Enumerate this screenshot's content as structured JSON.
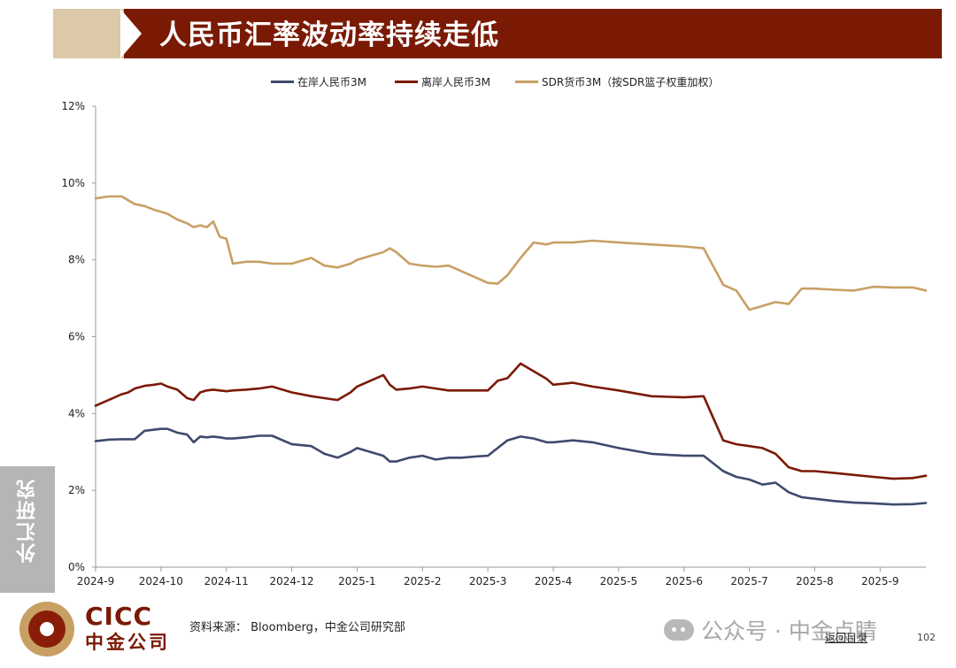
{
  "header": {
    "title": "人民币汇率波动率持续走低"
  },
  "side_tab": {
    "label": "外汇研究"
  },
  "footer": {
    "logo_en": "CICC",
    "logo_cn": "中金公司",
    "source": "资料来源： Bloomberg，中金公司研究部",
    "watermark": "公众号 · 中金点睛",
    "back_link": "返回目录",
    "page_number": "102"
  },
  "colors": {
    "banner": "#7a1a05",
    "banner_accent": "#dcc9a8",
    "onshore": "#3e4a6e",
    "offshore": "#7a1a05",
    "sdr": "#c8a064"
  },
  "chart_data": {
    "type": "line",
    "title": "",
    "xlabel": "",
    "ylabel": "",
    "ylim": [
      0,
      12
    ],
    "y_ticks": [
      "0%",
      "2%",
      "4%",
      "6%",
      "8%",
      "10%",
      "12%"
    ],
    "x_ticks": [
      "2024-9",
      "2024-10",
      "2024-11",
      "2024-12",
      "2025-1",
      "2025-2",
      "2025-3",
      "2025-4",
      "2025-5",
      "2025-6",
      "2025-7",
      "2025-8",
      "2025-9"
    ],
    "x_range": [
      0,
      12.7
    ],
    "grid": false,
    "legend_position": "top",
    "x": [
      0,
      0.2,
      0.4,
      0.5,
      0.6,
      0.75,
      0.9,
      1.0,
      1.1,
      1.25,
      1.4,
      1.5,
      1.6,
      1.7,
      1.8,
      1.9,
      2.0,
      2.1,
      2.3,
      2.5,
      2.7,
      3.0,
      3.3,
      3.5,
      3.7,
      3.9,
      4.0,
      4.2,
      4.4,
      4.5,
      4.6,
      4.8,
      5.0,
      5.2,
      5.4,
      5.6,
      5.8,
      6.0,
      6.15,
      6.3,
      6.5,
      6.7,
      6.9,
      7.0,
      7.3,
      7.6,
      8.0,
      8.5,
      9.0,
      9.3,
      9.6,
      9.8,
      10.0,
      10.2,
      10.4,
      10.6,
      10.8,
      11.0,
      11.3,
      11.6,
      11.9,
      12.2,
      12.5,
      12.7
    ],
    "series": [
      {
        "name": "在岸人民币3M",
        "color": "#3e4a6e",
        "values": [
          3.28,
          3.32,
          3.33,
          3.33,
          3.33,
          3.55,
          3.58,
          3.6,
          3.6,
          3.5,
          3.45,
          3.25,
          3.4,
          3.38,
          3.4,
          3.38,
          3.35,
          3.35,
          3.38,
          3.42,
          3.42,
          3.2,
          3.15,
          2.95,
          2.85,
          3.0,
          3.1,
          3.0,
          2.9,
          2.75,
          2.75,
          2.85,
          2.9,
          2.8,
          2.85,
          2.85,
          2.88,
          2.9,
          3.1,
          3.3,
          3.4,
          3.35,
          3.25,
          3.25,
          3.3,
          3.25,
          3.1,
          2.95,
          2.9,
          2.9,
          2.5,
          2.35,
          2.28,
          2.15,
          2.2,
          1.95,
          1.82,
          1.78,
          1.72,
          1.68,
          1.66,
          1.63,
          1.64,
          1.67
        ]
      },
      {
        "name": "离岸人民币3M",
        "color": "#7a1a05",
        "values": [
          4.2,
          4.35,
          4.5,
          4.55,
          4.65,
          4.72,
          4.75,
          4.78,
          4.7,
          4.62,
          4.4,
          4.35,
          4.55,
          4.6,
          4.62,
          4.6,
          4.58,
          4.6,
          4.62,
          4.65,
          4.7,
          4.55,
          4.45,
          4.4,
          4.35,
          4.55,
          4.7,
          4.85,
          5.0,
          4.75,
          4.62,
          4.65,
          4.7,
          4.65,
          4.6,
          4.6,
          4.6,
          4.6,
          4.85,
          4.92,
          5.3,
          5.1,
          4.9,
          4.75,
          4.8,
          4.7,
          4.6,
          4.45,
          4.42,
          4.45,
          3.3,
          3.2,
          3.15,
          3.1,
          2.95,
          2.6,
          2.5,
          2.5,
          2.45,
          2.4,
          2.35,
          2.3,
          2.32,
          2.38
        ]
      },
      {
        "name": "SDR货币3M（按SDR篮子权重加权）",
        "color": "#c8a064",
        "values": [
          9.6,
          9.65,
          9.65,
          9.55,
          9.45,
          9.4,
          9.3,
          9.25,
          9.2,
          9.05,
          8.95,
          8.85,
          8.9,
          8.85,
          9.0,
          8.6,
          8.55,
          7.9,
          7.95,
          7.95,
          7.9,
          7.9,
          8.05,
          7.85,
          7.8,
          7.9,
          8.0,
          8.1,
          8.2,
          8.3,
          8.2,
          7.9,
          7.85,
          7.82,
          7.85,
          7.7,
          7.55,
          7.4,
          7.38,
          7.6,
          8.05,
          8.45,
          8.4,
          8.45,
          8.45,
          8.5,
          8.45,
          8.4,
          8.35,
          8.3,
          7.35,
          7.2,
          6.7,
          6.8,
          6.9,
          6.85,
          7.25,
          7.25,
          7.22,
          7.2,
          7.3,
          7.28,
          7.28,
          7.2
        ]
      }
    ]
  }
}
